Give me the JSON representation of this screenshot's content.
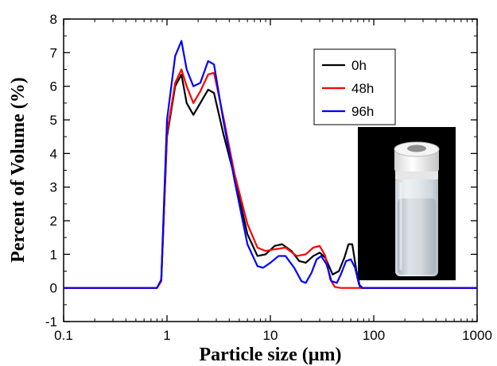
{
  "chart_data": {
    "type": "line",
    "xscale": "log",
    "xlim": [
      0.1,
      1000
    ],
    "ylim": [
      -1,
      8
    ],
    "xlabel": "Particle size (µm)",
    "ylabel": "Percent of Volume (%)",
    "xticks": [
      {
        "value": 0.1,
        "label": "0.1"
      },
      {
        "value": 1,
        "label": "1"
      },
      {
        "value": 10,
        "label": "10"
      },
      {
        "value": 100,
        "label": "100"
      },
      {
        "value": 1000,
        "label": "1000"
      }
    ],
    "yticks": [
      {
        "value": -1,
        "label": "-1"
      },
      {
        "value": 0,
        "label": "0"
      },
      {
        "value": 1,
        "label": "1"
      },
      {
        "value": 2,
        "label": "2"
      },
      {
        "value": 3,
        "label": "3"
      },
      {
        "value": 4,
        "label": "4"
      },
      {
        "value": 5,
        "label": "5"
      },
      {
        "value": 6,
        "label": "6"
      },
      {
        "value": 7,
        "label": "7"
      },
      {
        "value": 8,
        "label": "8"
      }
    ],
    "legend_position": "top-right",
    "series": [
      {
        "name": "0h",
        "color": "#000000",
        "points": [
          [
            0.1,
            0
          ],
          [
            0.8,
            0
          ],
          [
            0.88,
            0.2
          ],
          [
            1.0,
            4.5
          ],
          [
            1.2,
            6.0
          ],
          [
            1.38,
            6.35
          ],
          [
            1.55,
            5.5
          ],
          [
            1.8,
            5.15
          ],
          [
            2.1,
            5.5
          ],
          [
            2.5,
            5.9
          ],
          [
            2.85,
            5.8
          ],
          [
            3.5,
            4.6
          ],
          [
            4.5,
            3.3
          ],
          [
            6.0,
            1.6
          ],
          [
            7.5,
            0.95
          ],
          [
            9.0,
            1.0
          ],
          [
            11,
            1.25
          ],
          [
            13,
            1.3
          ],
          [
            16,
            1.1
          ],
          [
            19,
            0.8
          ],
          [
            22,
            0.75
          ],
          [
            26,
            0.95
          ],
          [
            30,
            1.05
          ],
          [
            34,
            0.9
          ],
          [
            40,
            0.4
          ],
          [
            46,
            0.5
          ],
          [
            52,
            0.9
          ],
          [
            57,
            1.3
          ],
          [
            62,
            1.3
          ],
          [
            68,
            0.5
          ],
          [
            74,
            0
          ],
          [
            1000,
            0
          ]
        ]
      },
      {
        "name": "48h",
        "color": "#ff0000",
        "points": [
          [
            0.1,
            0
          ],
          [
            0.8,
            0
          ],
          [
            0.88,
            0.2
          ],
          [
            1.0,
            4.6
          ],
          [
            1.2,
            6.1
          ],
          [
            1.38,
            6.5
          ],
          [
            1.55,
            6.0
          ],
          [
            1.8,
            5.5
          ],
          [
            2.1,
            5.85
          ],
          [
            2.5,
            6.35
          ],
          [
            2.85,
            6.4
          ],
          [
            3.5,
            5.1
          ],
          [
            4.5,
            3.4
          ],
          [
            6.0,
            1.9
          ],
          [
            7.5,
            1.2
          ],
          [
            9.0,
            1.1
          ],
          [
            11,
            1.15
          ],
          [
            14,
            1.2
          ],
          [
            18,
            0.95
          ],
          [
            22,
            1.0
          ],
          [
            26,
            1.2
          ],
          [
            30,
            1.25
          ],
          [
            34,
            0.95
          ],
          [
            38,
            0.25
          ],
          [
            42,
            0.03
          ],
          [
            48,
            0
          ],
          [
            1000,
            0
          ]
        ]
      },
      {
        "name": "96h",
        "color": "#0000ff",
        "points": [
          [
            0.1,
            0
          ],
          [
            0.8,
            0
          ],
          [
            0.88,
            0.25
          ],
          [
            1.0,
            5.0
          ],
          [
            1.2,
            6.9
          ],
          [
            1.38,
            7.35
          ],
          [
            1.55,
            6.5
          ],
          [
            1.8,
            6.0
          ],
          [
            2.1,
            6.1
          ],
          [
            2.5,
            6.75
          ],
          [
            2.85,
            6.65
          ],
          [
            3.5,
            5.0
          ],
          [
            4.5,
            3.2
          ],
          [
            6.0,
            1.3
          ],
          [
            7.5,
            0.65
          ],
          [
            8.5,
            0.6
          ],
          [
            10,
            0.75
          ],
          [
            12,
            0.95
          ],
          [
            14,
            0.95
          ],
          [
            17,
            0.6
          ],
          [
            20,
            0.2
          ],
          [
            22,
            0.15
          ],
          [
            25,
            0.45
          ],
          [
            28,
            0.85
          ],
          [
            31,
            0.95
          ],
          [
            35,
            0.7
          ],
          [
            39,
            0.2
          ],
          [
            44,
            0.15
          ],
          [
            48,
            0.4
          ],
          [
            54,
            0.8
          ],
          [
            60,
            0.85
          ],
          [
            66,
            0.6
          ],
          [
            72,
            0.1
          ],
          [
            78,
            0
          ],
          [
            1000,
            0
          ]
        ]
      }
    ]
  },
  "inset": {
    "content": "photo of a capped glass vial containing a cloudy white liquid"
  }
}
